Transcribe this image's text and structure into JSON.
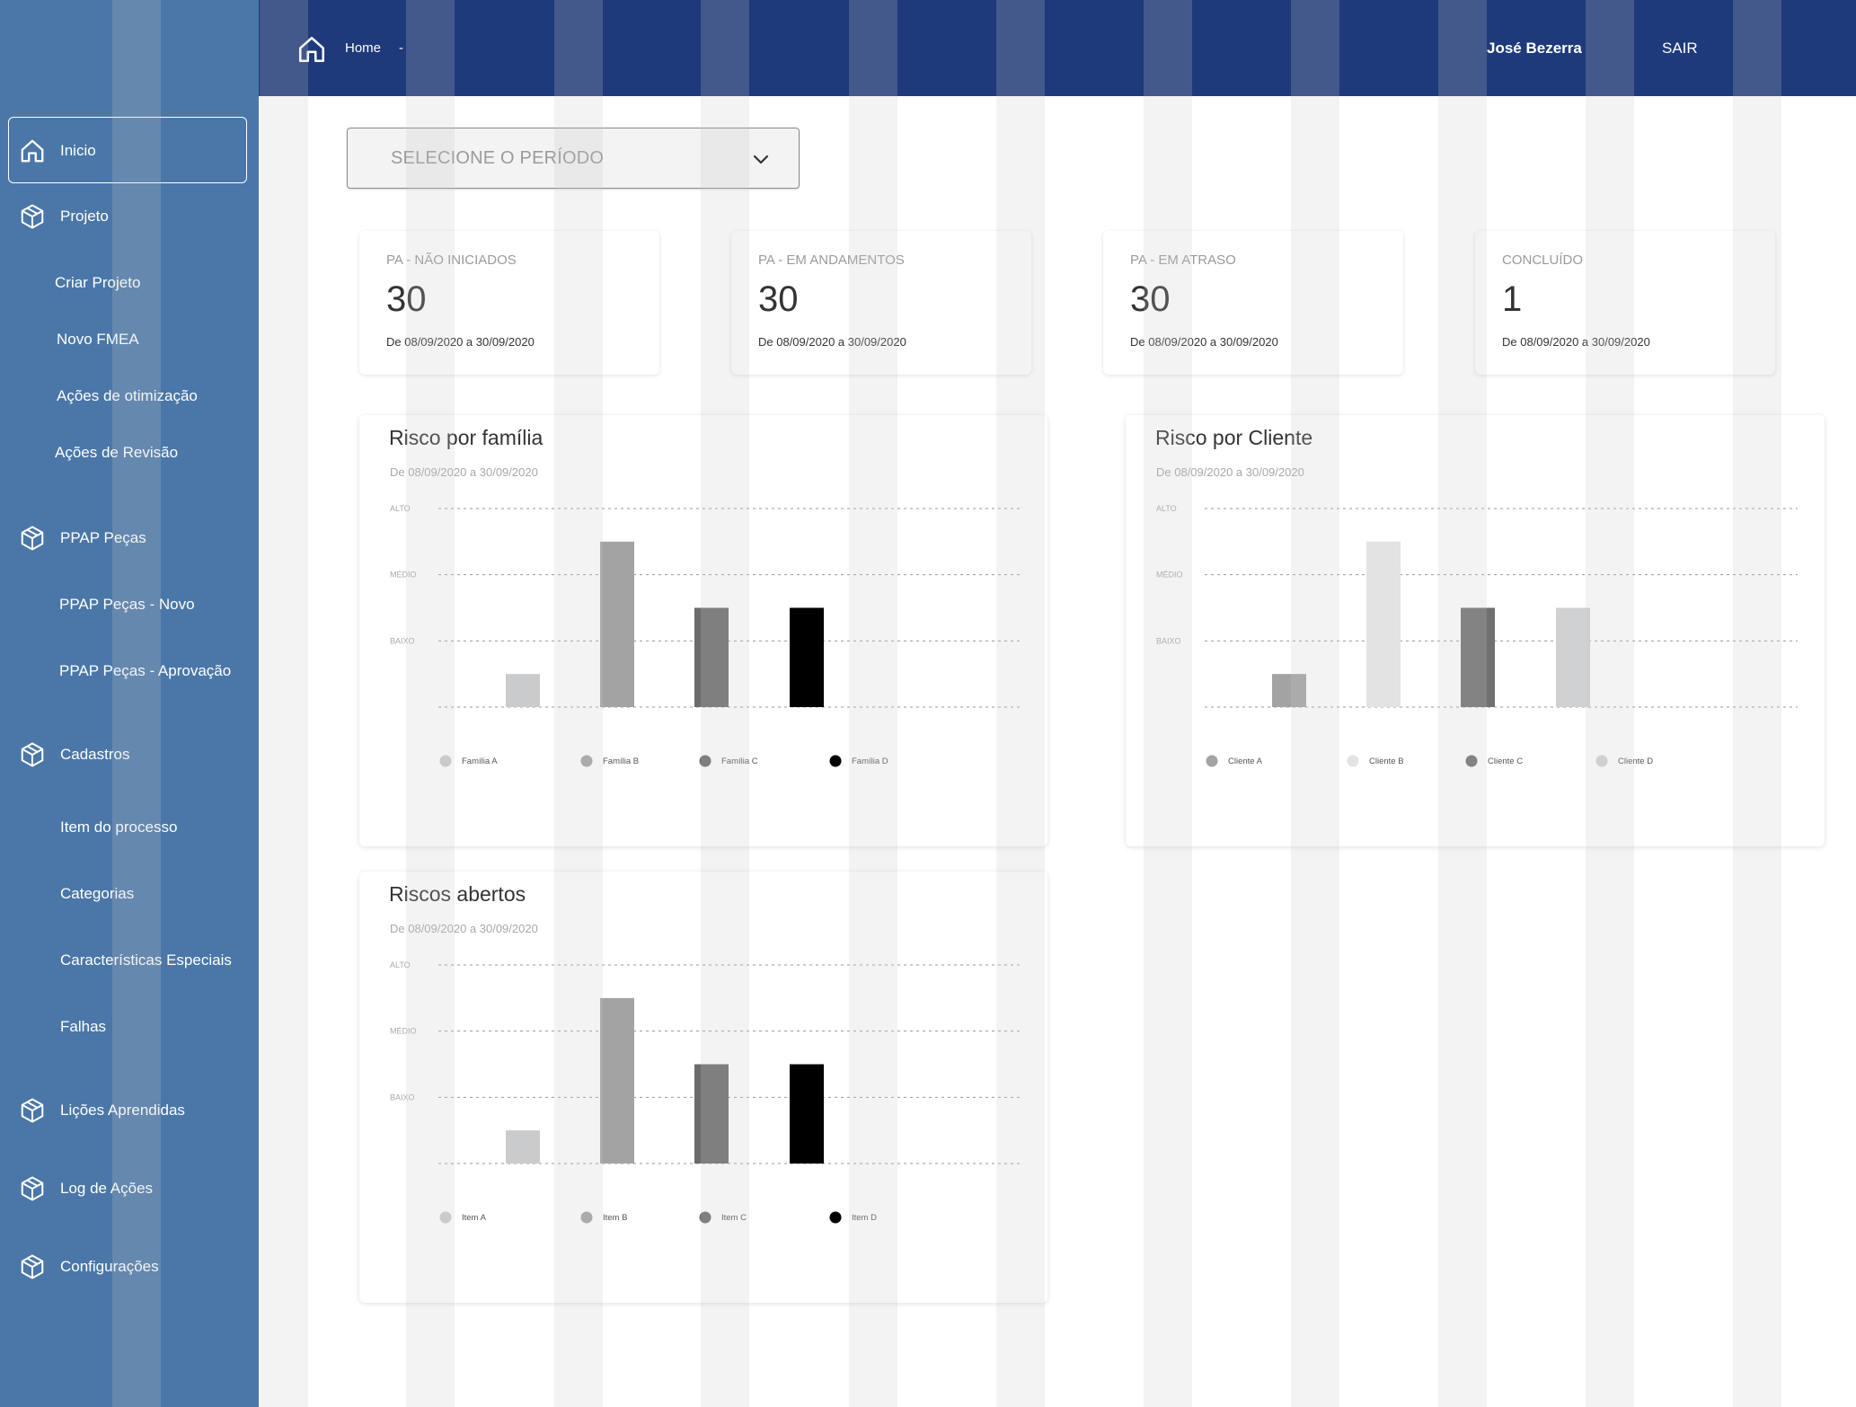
{
  "header": {
    "breadcrumb_home": "Home",
    "breadcrumb_sep": "-",
    "user_name": "José Bezerra",
    "logout_label": "SAIR"
  },
  "sidebar": {
    "items": [
      {
        "label": "Inicio",
        "icon": "home-icon",
        "active": true
      },
      {
        "label": "Projeto",
        "icon": "box-icon"
      },
      {
        "label": "Criar Projeto"
      },
      {
        "label": "Novo FMEA"
      },
      {
        "label": "Ações de otimização"
      },
      {
        "label": "Ações de Revisão"
      },
      {
        "label": "PPAP Peças",
        "icon": "box-icon"
      },
      {
        "label": "PPAP Peças - Novo"
      },
      {
        "label": "PPAP Peças - Aprovação"
      },
      {
        "label": "Cadastros",
        "icon": "box-icon"
      },
      {
        "label": "Item do processo"
      },
      {
        "label": "Categorias"
      },
      {
        "label": "Características Especiais"
      },
      {
        "label": "Falhas"
      },
      {
        "label": "Lições Aprendidas",
        "icon": "box-icon"
      },
      {
        "label": "Log de Ações",
        "icon": "box-icon"
      },
      {
        "label": "Configurações",
        "icon": "box-icon"
      }
    ]
  },
  "filter": {
    "placeholder": "SELECIONE O PERÍODO"
  },
  "stats": [
    {
      "title": "PA - NÃO INICIADOS",
      "value": "30",
      "date": "De 08/09/2020 a 30/09/2020"
    },
    {
      "title": "PA - EM ANDAMENTOS",
      "value": "30",
      "date": "De 08/09/2020 a 30/09/2020"
    },
    {
      "title": "PA - EM ATRASO",
      "value": "30",
      "date": "De 08/09/2020 a 30/09/2020"
    },
    {
      "title": "CONCLUÍDO",
      "value": "1",
      "date": "De 08/09/2020 a 30/09/2020"
    }
  ],
  "colors": {
    "sidebar": "#4a77a8",
    "header": "#1e3a7b"
  },
  "chart_data": [
    {
      "type": "bar",
      "title": "Risco por família",
      "subtitle": "De 08/09/2020 a 30/09/2020",
      "y_ticks": [
        "ALTO",
        "MÉDIO",
        "BAIXO"
      ],
      "ylim": [
        0,
        3
      ],
      "categories": [
        "Família A",
        "Família B",
        "Família C",
        "Família D"
      ],
      "values": [
        0.5,
        2.5,
        1.5,
        1.5
      ],
      "colors": [
        "#c9cbcd",
        "#a3a3a3",
        "#6b6b6b",
        "#000000"
      ],
      "legend_position": "bottom"
    },
    {
      "type": "bar",
      "title": "Risco por Cliente",
      "subtitle": "De 08/09/2020 a 30/09/2020",
      "y_ticks": [
        "ALTO",
        "MÉDIO",
        "BAIXO"
      ],
      "ylim": [
        0,
        3
      ],
      "categories": [
        "Cliente A",
        "Cliente B",
        "Cliente C",
        "Cliente D"
      ],
      "values": [
        0.5,
        2.5,
        1.5,
        1.5
      ],
      "colors": [
        "#a3a3a3",
        "#e3e3e3",
        "#707070",
        "#cfd1d3"
      ],
      "legend_position": "bottom"
    },
    {
      "type": "bar",
      "title": "Riscos abertos",
      "subtitle": "De 08/09/2020 a 30/09/2020",
      "y_ticks": [
        "ALTO",
        "MÉDIO",
        "BAIXO"
      ],
      "ylim": [
        0,
        3
      ],
      "categories": [
        "Item A",
        "Item B",
        "Item C",
        "Item D"
      ],
      "values": [
        0.5,
        2.5,
        1.5,
        1.5
      ],
      "colors": [
        "#c9cbcd",
        "#a3a3a3",
        "#6b6b6b",
        "#000000"
      ],
      "legend_position": "bottom"
    }
  ]
}
